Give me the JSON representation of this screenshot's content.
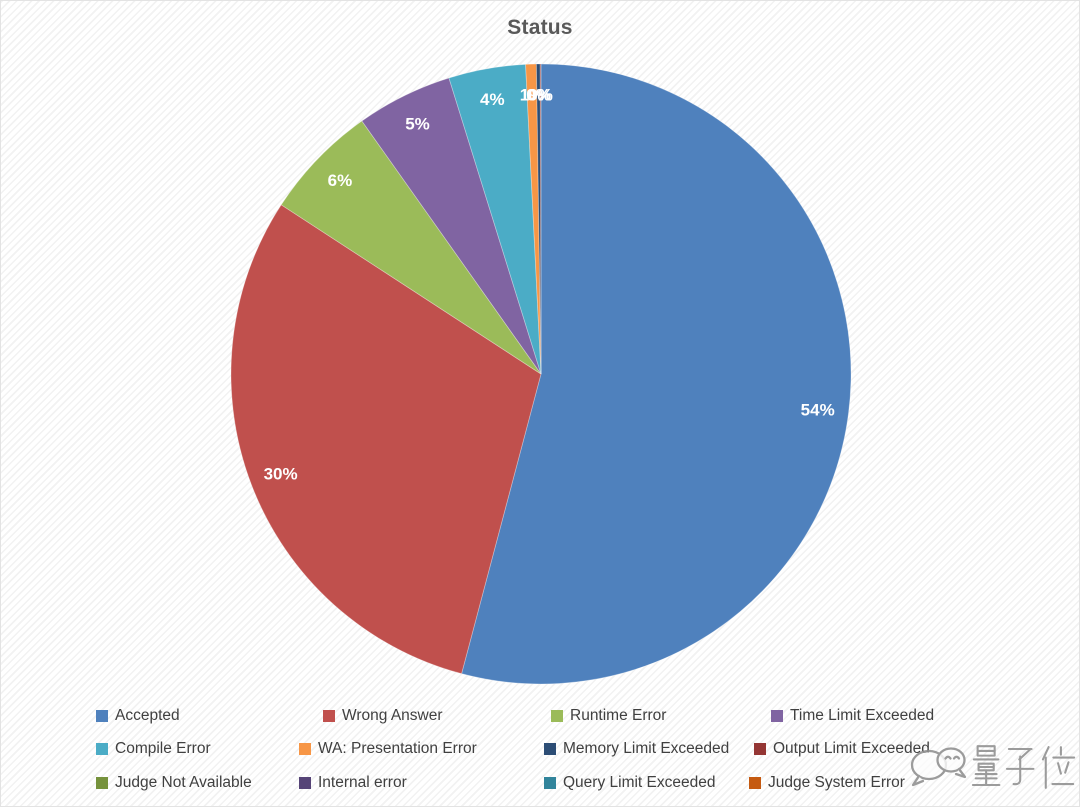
{
  "title": "Status",
  "chart_data": {
    "type": "pie",
    "title": "Status",
    "legend_position": "bottom",
    "start_angle_deg": 0,
    "direction": "clockwise",
    "slices": [
      {
        "label": "Accepted",
        "value": 54,
        "display": "54%",
        "color": "#4F81BD",
        "sweep_deg_est": 194.6
      },
      {
        "label": "Wrong Answer",
        "value": 30,
        "display": "30%",
        "color": "#C0504D",
        "sweep_deg_est": 108.1
      },
      {
        "label": "Runtime Error",
        "value": 6,
        "display": "6%",
        "color": "#9BBB59",
        "sweep_deg_est": 21.6
      },
      {
        "label": "Time Limit Exceeded",
        "value": 5,
        "display": "5%",
        "color": "#8064A2",
        "sweep_deg_est": 18.0
      },
      {
        "label": "Compile Error",
        "value": 4,
        "display": "4%",
        "color": "#4BACC6",
        "sweep_deg_est": 14.4
      },
      {
        "label": "WA: Presentation Error",
        "value": 1,
        "display": "1%",
        "color": "#F79646",
        "sweep_deg_est": 2.0
      },
      {
        "label": "Memory Limit Exceeded",
        "value": 0,
        "display": "0%",
        "color": "#2C4D75",
        "sweep_deg_est": 0.7
      },
      {
        "label": "Output Limit Exceeded",
        "value": 0,
        "display": "0%",
        "color": "#943634",
        "sweep_deg_est": 0.15
      },
      {
        "label": "Judge Not Available",
        "value": 0,
        "display": "",
        "color": "#76923C",
        "sweep_deg_est": 0
      },
      {
        "label": "Internal error",
        "value": 0,
        "display": "",
        "color": "#564477",
        "sweep_deg_est": 0
      },
      {
        "label": "Query Limit Exceeded",
        "value": 0,
        "display": "",
        "color": "#31849B",
        "sweep_deg_est": 0
      },
      {
        "label": "Judge System Error",
        "value": 0,
        "display": "",
        "color": "#C55A11",
        "sweep_deg_est": 0
      }
    ]
  },
  "watermark": {
    "text": "量子位",
    "icon": "wechat-bubbles-icon"
  },
  "colors": {
    "title_text": "#595959",
    "legend_text": "#404040",
    "slice_label_text": "#ffffff",
    "background": "#ffffff",
    "stripe": "#e0e0e0",
    "watermark_gray": "#8f8f8f"
  }
}
